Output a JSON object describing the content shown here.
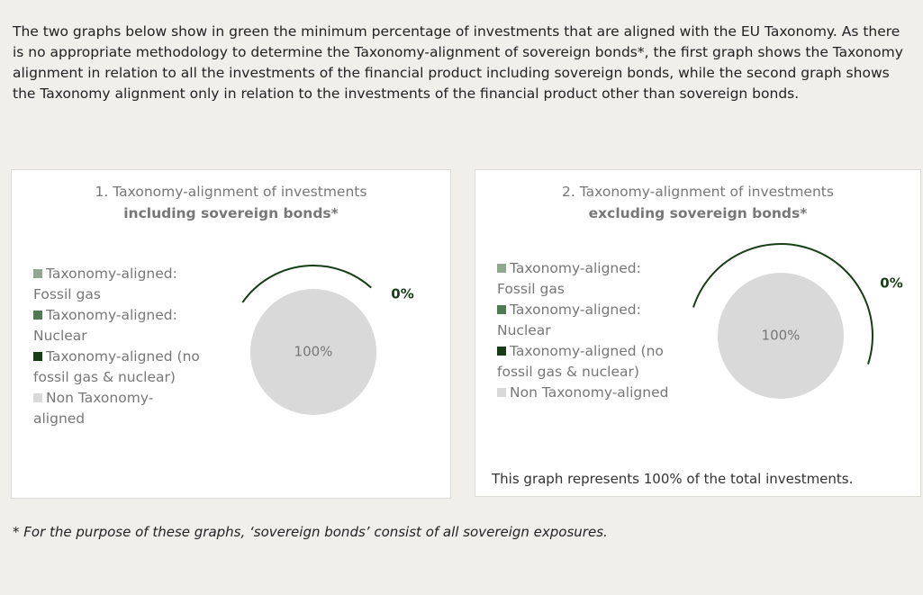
{
  "intro": "The two graphs below show in green the minimum percentage of investments that are aligned with the EU Taxonomy. As there is no appropriate methodology to determine the Taxonomy-alignment of sovereign bonds*, the first graph shows the Taxonomy alignment in relation to all the investments of the financial product including sovereign bonds, while the second graph shows the Taxonomy alignment only in relation to the investments of the financial product other than sovereign bonds.",
  "chart_data": [
    {
      "type": "pie",
      "title": "1. Taxonomy-alignment of investments",
      "subtitle": "including sovereign bonds*",
      "categories": [
        "Taxonomy-aligned: Fossil gas",
        "Taxonomy-aligned: Nuclear",
        "Taxonomy-aligned (no fossil gas & nuclear)",
        "Non Taxonomy-aligned"
      ],
      "values": [
        0,
        0,
        0,
        100
      ],
      "value_labels": [
        null,
        null,
        "0%",
        "100%"
      ],
      "colors": [
        "#8fa88f",
        "#4f7a52",
        "#173d17",
        "#d9d9d9"
      ]
    },
    {
      "type": "pie",
      "title": "2. Taxonomy-alignment of investments",
      "subtitle": "excluding sovereign bonds*",
      "categories": [
        "Taxonomy-aligned: Fossil gas",
        "Taxonomy-aligned: Nuclear",
        "Taxonomy-aligned (no fossil gas & nuclear)",
        "Non Taxonomy-aligned"
      ],
      "values": [
        0,
        0,
        0,
        100
      ],
      "value_labels": [
        null,
        null,
        "0%",
        "100%"
      ],
      "colors": [
        "#8fa88f",
        "#4f7a52",
        "#173d17",
        "#d9d9d9"
      ],
      "note": "This graph represents 100% of the total investments."
    }
  ],
  "footnote": "*  For the purpose of these graphs, ‘sovereign bonds’ consist of all sovereign exposures."
}
